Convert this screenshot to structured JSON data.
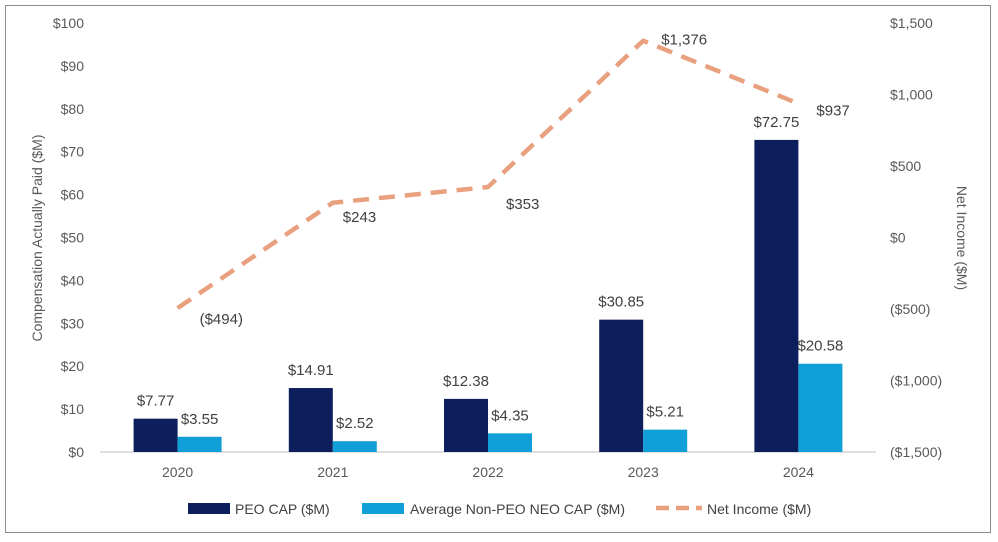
{
  "chart_data": {
    "type": "bar",
    "categories": [
      "2020",
      "2021",
      "2022",
      "2023",
      "2024"
    ],
    "series": [
      {
        "name": "PEO CAP ($M)",
        "kind": "bar",
        "axis": "left",
        "color": "#0c1f5c",
        "values": [
          7.77,
          14.91,
          12.38,
          30.85,
          72.75
        ],
        "labels": [
          "$7.77",
          "$14.91",
          "$12.38",
          "$30.85",
          "$72.75"
        ]
      },
      {
        "name": "Average Non-PEO NEO CAP ($M)",
        "kind": "bar",
        "axis": "left",
        "color": "#119fd8",
        "values": [
          3.55,
          2.52,
          4.35,
          5.21,
          20.58
        ],
        "labels": [
          "$3.55",
          "$2.52",
          "$4.35",
          "$5.21",
          "$20.58"
        ]
      },
      {
        "name": "Net Income ($M)",
        "kind": "line",
        "style": "dashed",
        "axis": "right",
        "color": "#e8a07e",
        "values": [
          -494,
          243,
          353,
          1376,
          937
        ],
        "labels": [
          "($494)",
          "$243",
          "$353",
          "$1,376",
          "$937"
        ]
      }
    ],
    "y_left": {
      "label": "Compensation Actually Paid ($M)",
      "range": [
        0,
        100
      ],
      "ticks": [
        0,
        10,
        20,
        30,
        40,
        50,
        60,
        70,
        80,
        90,
        100
      ],
      "tick_labels": [
        "$0",
        "$10",
        "$20",
        "$30",
        "$40",
        "$50",
        "$60",
        "$70",
        "$80",
        "$90",
        "$100"
      ]
    },
    "y_right": {
      "label": "Net Income ($M)",
      "range": [
        -1500,
        1500
      ],
      "ticks": [
        -1500,
        -1000,
        -500,
        0,
        500,
        1000,
        1500
      ],
      "tick_labels": [
        "($1,500)",
        "($1,000)",
        "($500)",
        "$0",
        "$500",
        "$1,000",
        "$1,500"
      ]
    },
    "grid": false,
    "legend_position": "bottom"
  }
}
